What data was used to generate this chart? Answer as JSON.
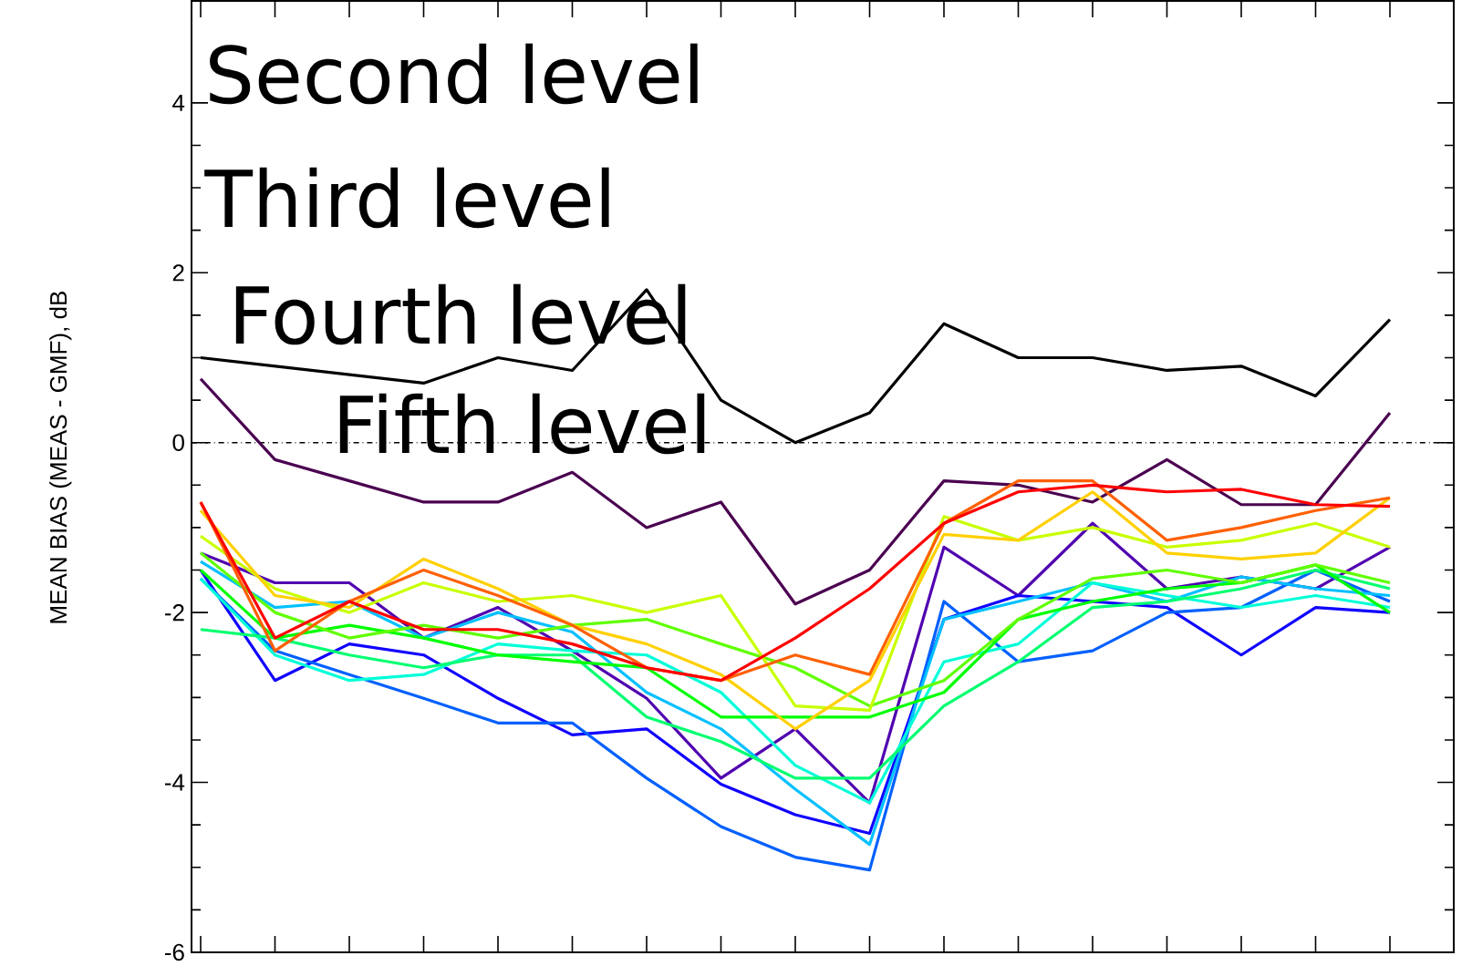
{
  "chart_data": {
    "type": "line",
    "ylabel": "MEAN BIAS (MEAS - GMF), dB",
    "annotations": [
      "Second level",
      "Third level",
      "Fourth level",
      "Fifth level"
    ],
    "categories": [
      null,
      null,
      null,
      null,
      null,
      null,
      null,
      null,
      null,
      null,
      null,
      null,
      null,
      null,
      null,
      null,
      null
    ],
    "ylim": [
      -6,
      5.2
    ],
    "yticks": [
      -6,
      -4,
      -2,
      0,
      2,
      4
    ],
    "ref_lines": [
      {
        "axis": "y",
        "value": 0,
        "line_style": "dashdot",
        "color": "#000000"
      }
    ],
    "series": [
      {
        "color": "#000000",
        "values": [
          1.0,
          0.9,
          0.8,
          0.7,
          1.0,
          0.85,
          1.8,
          0.5,
          0.0,
          0.35,
          1.4,
          1.0,
          1.0,
          0.85,
          0.9,
          0.55,
          1.45
        ]
      },
      {
        "color": "#4a0050",
        "values": [
          0.75,
          -0.2,
          -0.45,
          -0.7,
          -0.7,
          -0.35,
          -1.0,
          -0.7,
          -1.9,
          -1.5,
          -0.45,
          -0.5,
          -0.7,
          -0.2,
          -0.73,
          -0.73,
          0.35
        ]
      },
      {
        "color": "#5000b0",
        "values": [
          -1.3,
          -1.65,
          -1.65,
          -2.3,
          -1.94,
          -2.45,
          -3.01,
          -3.95,
          -3.37,
          -4.24,
          -1.23,
          -1.8,
          -0.95,
          -1.72,
          -1.58,
          -1.72,
          -1.23
        ]
      },
      {
        "color": "#1000ff",
        "values": [
          -1.5,
          -2.8,
          -2.37,
          -2.5,
          -3.01,
          -3.44,
          -3.37,
          -4.02,
          -4.38,
          -4.6,
          -2.08,
          -1.8,
          -1.87,
          -1.94,
          -2.5,
          -1.94,
          -2.0
        ]
      },
      {
        "color": "#0060ff",
        "values": [
          -1.6,
          -2.45,
          -2.73,
          -3.01,
          -3.3,
          -3.3,
          -3.95,
          -4.52,
          -4.88,
          -5.03,
          -1.87,
          -2.58,
          -2.45,
          -2.0,
          -1.94,
          -1.5,
          -1.87
        ]
      },
      {
        "color": "#00c0ff",
        "values": [
          -1.4,
          -1.94,
          -1.87,
          -2.3,
          -2.0,
          -2.23,
          -2.94,
          -3.37,
          -4.08,
          -4.73,
          -2.08,
          -1.87,
          -1.65,
          -1.87,
          -1.58,
          -1.72,
          -1.8
        ]
      },
      {
        "color": "#00ffd8",
        "values": [
          -1.6,
          -2.5,
          -2.8,
          -2.73,
          -2.37,
          -2.45,
          -2.5,
          -2.94,
          -3.8,
          -4.24,
          -2.58,
          -2.37,
          -1.65,
          -1.8,
          -1.94,
          -1.8,
          -1.94
        ]
      },
      {
        "color": "#00ff70",
        "values": [
          -2.2,
          -2.3,
          -2.5,
          -2.65,
          -2.5,
          -2.5,
          -3.23,
          -3.52,
          -3.95,
          -3.95,
          -3.1,
          -2.58,
          -1.94,
          -1.87,
          -1.72,
          -1.5,
          -1.72
        ]
      },
      {
        "color": "#00ff00",
        "values": [
          -1.5,
          -2.3,
          -2.15,
          -2.3,
          -2.5,
          -2.58,
          -2.65,
          -3.23,
          -3.23,
          -3.23,
          -2.94,
          -2.08,
          -1.87,
          -1.72,
          -1.65,
          -1.44,
          -2.0
        ]
      },
      {
        "color": "#60ff00",
        "values": [
          -1.3,
          -2.0,
          -2.3,
          -2.15,
          -2.3,
          -2.15,
          -2.08,
          -2.37,
          -2.65,
          -3.1,
          -2.8,
          -2.08,
          -1.6,
          -1.5,
          -1.65,
          -1.44,
          -1.65
        ]
      },
      {
        "color": "#c8ff00",
        "values": [
          -1.1,
          -1.72,
          -2.0,
          -1.65,
          -1.87,
          -1.8,
          -2.0,
          -1.8,
          -3.1,
          -3.15,
          -0.87,
          -1.15,
          -1.0,
          -1.23,
          -1.15,
          -0.95,
          -1.23
        ]
      },
      {
        "color": "#ffd000",
        "values": [
          -0.8,
          -1.8,
          -1.94,
          -1.37,
          -1.72,
          -2.15,
          -2.37,
          -2.73,
          -3.37,
          -2.8,
          -1.08,
          -1.15,
          -0.58,
          -1.3,
          -1.37,
          -1.3,
          -0.65
        ]
      },
      {
        "color": "#ff6000",
        "values": [
          -0.7,
          -2.45,
          -1.87,
          -1.5,
          -1.8,
          -2.15,
          -2.65,
          -2.8,
          -2.5,
          -2.73,
          -0.95,
          -0.45,
          -0.45,
          -1.15,
          -1.0,
          -0.8,
          -0.65
        ]
      },
      {
        "color": "#ff0000",
        "values": [
          -0.7,
          -2.3,
          -1.87,
          -2.2,
          -2.2,
          -2.37,
          -2.65,
          -2.8,
          -2.3,
          -1.72,
          -0.95,
          -0.58,
          -0.5,
          -0.58,
          -0.55,
          -0.73,
          -0.75
        ]
      }
    ]
  }
}
